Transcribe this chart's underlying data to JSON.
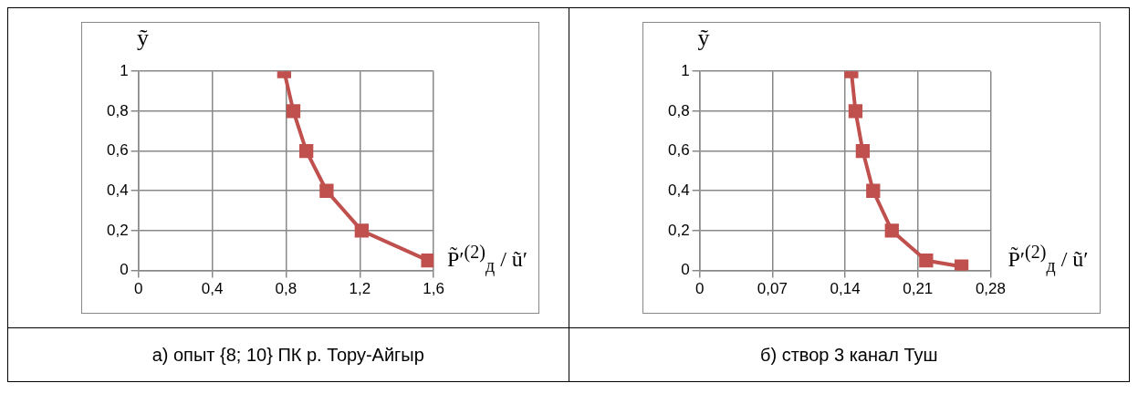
{
  "chart_data": [
    {
      "type": "line",
      "xlabel": "P̃′$^{(2)}$$_{д}$ / ũ′",
      "ylabel": "ỹ",
      "annotations": [
        "а) опыт {8; 10} ПК р. Тору-Айгыр"
      ],
      "grid": true,
      "legend": false,
      "marker": "square",
      "line_style": "solid",
      "xlim": [
        0,
        1.6
      ],
      "xticks": [
        {
          "value": 0,
          "label": "0"
        },
        {
          "value": 0.4,
          "label": "0,4"
        },
        {
          "value": 0.8,
          "label": "0,8"
        },
        {
          "value": 1.2,
          "label": "1,2"
        },
        {
          "value": 1.6,
          "label": "1,6"
        }
      ],
      "ylim": [
        0,
        1
      ],
      "yticks": [
        {
          "value": 0,
          "label": "0"
        },
        {
          "value": 0.2,
          "label": "0,2"
        },
        {
          "value": 0.4,
          "label": "0,4"
        },
        {
          "value": 0.6,
          "label": "0,6"
        },
        {
          "value": 0.8,
          "label": "0,8"
        },
        {
          "value": 1,
          "label": "1"
        }
      ],
      "series": [
        {
          "color": "#c0504d",
          "x": [
            0.79,
            0.84,
            0.91,
            1.02,
            1.21,
            1.57
          ],
          "values": [
            1,
            0.8,
            0.6,
            0.4,
            0.2,
            0.05
          ]
        }
      ]
    },
    {
      "type": "line",
      "xlabel": "P̃′$^{(2)}$$_{д}$ / ũ′",
      "ylabel": "ỹ",
      "annotations": [
        "б) створ 3 канал Туш"
      ],
      "grid": true,
      "legend": false,
      "marker": "square",
      "line_style": "solid",
      "xlim": [
        0,
        0.28
      ],
      "xticks": [
        {
          "value": 0,
          "label": "0"
        },
        {
          "value": 0.07,
          "label": "0,07"
        },
        {
          "value": 0.14,
          "label": "0,14"
        },
        {
          "value": 0.21,
          "label": "0,21"
        },
        {
          "value": 0.28,
          "label": "0,28"
        }
      ],
      "ylim": [
        0,
        1
      ],
      "yticks": [
        {
          "value": 0,
          "label": "0"
        },
        {
          "value": 0.2,
          "label": "0,2"
        },
        {
          "value": 0.4,
          "label": "0,4"
        },
        {
          "value": 0.6,
          "label": "0,6"
        },
        {
          "value": 0.8,
          "label": "0,8"
        },
        {
          "value": 1,
          "label": "1"
        }
      ],
      "series": [
        {
          "color": "#c0504d",
          "x": [
            0.146,
            0.15,
            0.157,
            0.167,
            0.185,
            0.218,
            0.252
          ],
          "values": [
            1,
            0.8,
            0.6,
            0.4,
            0.2,
            0.05,
            0.02
          ]
        }
      ]
    }
  ]
}
